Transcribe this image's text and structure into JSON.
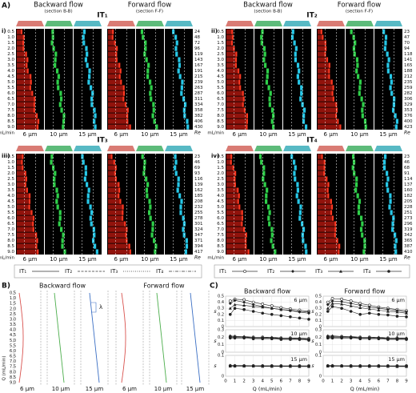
{
  "panel_a": {
    "label": "A)",
    "headers": [
      {
        "flow": "Backward flow",
        "section": "(section B-B)"
      },
      {
        "flow": "Forward flow",
        "section": "(section F-F)"
      }
    ],
    "q_labels": [
      "0.5",
      "1.0",
      "1.5",
      "2.0",
      "2.5",
      "3.0",
      "3.5",
      "4.0",
      "4.5",
      "5.0",
      "5.5",
      "6.0",
      "6.5",
      "7.0",
      "7.5",
      "8.0",
      "8.5",
      "9.0"
    ],
    "q_unit": "mL/min",
    "re_label": "Re",
    "sizes": [
      "6 µm",
      "10 µm",
      "15 µm"
    ],
    "subpanels": [
      {
        "label": "i)",
        "title": "IT₁",
        "re": [
          24,
          48,
          72,
          96,
          119,
          143,
          167,
          191,
          215,
          239,
          263,
          287,
          311,
          334,
          358,
          382,
          406,
          430
        ]
      },
      {
        "label": "ii)",
        "title": "IT₂",
        "re": [
          23,
          47,
          70,
          94,
          118,
          141,
          165,
          188,
          212,
          235,
          259,
          282,
          306,
          329,
          353,
          376,
          400,
          423
        ]
      },
      {
        "label": "iii)",
        "title": "IT₃",
        "re": [
          23,
          46,
          69,
          93,
          116,
          139,
          162,
          185,
          208,
          232,
          255,
          278,
          301,
          324,
          347,
          371,
          394,
          417
        ]
      },
      {
        "label": "iv)",
        "title": "IT₄",
        "re": [
          23,
          46,
          68,
          91,
          114,
          137,
          160,
          182,
          205,
          228,
          251,
          273,
          296,
          319,
          342,
          365,
          387,
          410
        ]
      }
    ],
    "legend_lines": [
      "IT₁",
      "IT₂",
      "IT₃",
      "IT₄"
    ],
    "legend_markers": [
      "IT₁",
      "IT₂",
      "IT₃",
      "IT₄"
    ]
  },
  "panel_b": {
    "label": "B)",
    "titles": [
      "Backward flow",
      "Forward flow"
    ],
    "axis_label": "Q (mL/min)",
    "lambda": "λ",
    "q_labels": [
      "0.5",
      "1.0",
      "1.5",
      "2.0",
      "2.5",
      "3.0",
      "3.5",
      "4.0",
      "4.5",
      "5.0",
      "5.5",
      "6.0",
      "6.5",
      "7.0",
      "7.5",
      "8.0",
      "8.5",
      "9.0"
    ],
    "sizes": [
      "6 µm",
      "10 µm",
      "15 µm"
    ]
  },
  "panel_c": {
    "label": "C)",
    "titles": [
      "Backward flow",
      "Forward flow"
    ],
    "x_label": "Q (mL/min)",
    "y_label": "s"
  },
  "chart_data": [
    {
      "type": "line",
      "label": "6 µm",
      "label_color": "#e8532b",
      "x": [
        0.5,
        1,
        2,
        3,
        4,
        5,
        6,
        7,
        8,
        9
      ],
      "xlim": [
        0,
        9
      ],
      "xticks": [
        0,
        1,
        2,
        3,
        4,
        5,
        6,
        7,
        8,
        9
      ],
      "ylim": [
        0,
        0.5
      ],
      "yticks": [
        0,
        0.1,
        0.2,
        0.3,
        0.4,
        0.5
      ],
      "grid": true,
      "series": [
        {
          "color": "#222",
          "marker": "circle",
          "values": [
            0.42,
            0.45,
            0.44,
            0.4,
            0.37,
            0.34,
            0.31,
            0.29,
            0.27,
            0.25
          ]
        },
        {
          "color": "#222",
          "marker": "diamond",
          "values": [
            0.38,
            0.43,
            0.4,
            0.36,
            0.33,
            0.3,
            0.28,
            0.26,
            0.24,
            0.22
          ]
        },
        {
          "color": "#222",
          "marker": "triangle",
          "values": [
            0.3,
            0.36,
            0.35,
            0.33,
            0.32,
            0.3,
            0.28,
            0.27,
            0.25,
            0.24
          ]
        },
        {
          "color": "#222",
          "marker": "dot",
          "values": [
            0.2,
            0.3,
            0.28,
            0.25,
            0.22,
            0.2,
            0.18,
            0.16,
            0.14,
            0.12
          ]
        }
      ]
    },
    {
      "type": "line",
      "label": "6 µm",
      "label_color": "#e8532b",
      "x": [
        0.5,
        1,
        2,
        3,
        4,
        5,
        6,
        7,
        8,
        9
      ],
      "xlim": [
        0,
        9
      ],
      "xticks": [
        0,
        1,
        2,
        3,
        4,
        5,
        6,
        7,
        8,
        9
      ],
      "ylim": [
        0,
        0.5
      ],
      "yticks": [
        0,
        0.1,
        0.2,
        0.3,
        0.4,
        0.5
      ],
      "grid": true,
      "series": [
        {
          "color": "#222",
          "marker": "circle",
          "values": [
            0.4,
            0.46,
            0.45,
            0.42,
            0.38,
            0.35,
            0.32,
            0.3,
            0.28,
            0.26
          ]
        },
        {
          "color": "#222",
          "marker": "diamond",
          "values": [
            0.36,
            0.42,
            0.41,
            0.38,
            0.35,
            0.32,
            0.3,
            0.28,
            0.26,
            0.24
          ]
        },
        {
          "color": "#222",
          "marker": "triangle",
          "values": [
            0.3,
            0.38,
            0.37,
            0.34,
            0.31,
            0.29,
            0.27,
            0.25,
            0.24,
            0.22
          ]
        },
        {
          "color": "#222",
          "marker": "dot",
          "values": [
            0.25,
            0.33,
            0.3,
            0.25,
            0.2,
            0.22,
            0.2,
            0.19,
            0.17,
            0.16
          ]
        }
      ]
    },
    {
      "type": "line",
      "label": "10 µm",
      "label_color": "#3a9a2a",
      "x": [
        0.5,
        1,
        2,
        3,
        4,
        5,
        6,
        7,
        8,
        9
      ],
      "xlim": [
        0,
        9
      ],
      "xticks": [
        0,
        1,
        2,
        3,
        4,
        5,
        6,
        7,
        8,
        9
      ],
      "ylim": [
        0,
        0.3
      ],
      "yticks": [
        0,
        0.1,
        0.2,
        0.3
      ],
      "grid": true,
      "series": [
        {
          "color": "#222",
          "marker": "circle",
          "values": [
            0.21,
            0.21,
            0.2,
            0.2,
            0.2,
            0.19,
            0.19,
            0.19,
            0.18,
            0.18
          ]
        },
        {
          "color": "#222",
          "marker": "diamond",
          "values": [
            0.2,
            0.2,
            0.2,
            0.19,
            0.19,
            0.19,
            0.18,
            0.18,
            0.18,
            0.17
          ]
        },
        {
          "color": "#222",
          "marker": "triangle",
          "values": [
            0.22,
            0.21,
            0.21,
            0.2,
            0.2,
            0.2,
            0.19,
            0.19,
            0.19,
            0.18
          ]
        },
        {
          "color": "#222",
          "marker": "dot",
          "values": [
            0.19,
            0.19,
            0.19,
            0.18,
            0.18,
            0.18,
            0.17,
            0.17,
            0.17,
            0.16
          ]
        }
      ]
    },
    {
      "type": "line",
      "label": "10 µm",
      "label_color": "#3a9a2a",
      "x": [
        0.5,
        1,
        2,
        3,
        4,
        5,
        6,
        7,
        8,
        9
      ],
      "xlim": [
        0,
        9
      ],
      "xticks": [
        0,
        1,
        2,
        3,
        4,
        5,
        6,
        7,
        8,
        9
      ],
      "ylim": [
        0,
        0.3
      ],
      "yticks": [
        0,
        0.1,
        0.2,
        0.3
      ],
      "grid": true,
      "series": [
        {
          "color": "#222",
          "marker": "circle",
          "values": [
            0.21,
            0.21,
            0.21,
            0.2,
            0.2,
            0.2,
            0.19,
            0.19,
            0.19,
            0.18
          ]
        },
        {
          "color": "#222",
          "marker": "diamond",
          "values": [
            0.2,
            0.2,
            0.2,
            0.2,
            0.19,
            0.19,
            0.19,
            0.18,
            0.18,
            0.18
          ]
        },
        {
          "color": "#222",
          "marker": "triangle",
          "values": [
            0.22,
            0.22,
            0.21,
            0.21,
            0.2,
            0.2,
            0.2,
            0.19,
            0.19,
            0.19
          ]
        },
        {
          "color": "#222",
          "marker": "dot",
          "values": [
            0.19,
            0.19,
            0.19,
            0.19,
            0.18,
            0.18,
            0.18,
            0.17,
            0.17,
            0.17
          ]
        }
      ]
    },
    {
      "type": "line",
      "label": "15 µm",
      "label_color": "#1f4fa0",
      "x": [
        0.5,
        1,
        2,
        3,
        4,
        5,
        6,
        7,
        8,
        9
      ],
      "xlim": [
        0,
        9
      ],
      "xticks": [
        0,
        1,
        2,
        3,
        4,
        5,
        6,
        7,
        8,
        9
      ],
      "ylim": [
        0,
        0.1
      ],
      "yticks": [
        0,
        0.1
      ],
      "grid": true,
      "series": [
        {
          "color": "#222",
          "marker": "circle",
          "values": [
            0.05,
            0.05,
            0.05,
            0.05,
            0.05,
            0.05,
            0.05,
            0.05,
            0.05,
            0.05
          ]
        },
        {
          "color": "#222",
          "marker": "diamond",
          "values": [
            0.052,
            0.051,
            0.051,
            0.05,
            0.05,
            0.05,
            0.049,
            0.049,
            0.049,
            0.048
          ]
        },
        {
          "color": "#222",
          "marker": "triangle",
          "values": [
            0.048,
            0.048,
            0.048,
            0.048,
            0.047,
            0.047,
            0.047,
            0.047,
            0.046,
            0.046
          ]
        },
        {
          "color": "#222",
          "marker": "dot",
          "values": [
            0.05,
            0.05,
            0.049,
            0.049,
            0.049,
            0.048,
            0.048,
            0.048,
            0.048,
            0.047
          ]
        }
      ]
    },
    {
      "type": "line",
      "label": "15 µm",
      "label_color": "#1f4fa0",
      "x": [
        0.5,
        1,
        2,
        3,
        4,
        5,
        6,
        7,
        8,
        9
      ],
      "xlim": [
        0,
        9
      ],
      "xticks": [
        0,
        1,
        2,
        3,
        4,
        5,
        6,
        7,
        8,
        9
      ],
      "ylim": [
        0,
        0.1
      ],
      "yticks": [
        0,
        0.1
      ],
      "grid": true,
      "series": [
        {
          "color": "#222",
          "marker": "circle",
          "values": [
            0.05,
            0.05,
            0.05,
            0.05,
            0.05,
            0.05,
            0.05,
            0.05,
            0.05,
            0.05
          ]
        },
        {
          "color": "#222",
          "marker": "diamond",
          "values": [
            0.051,
            0.051,
            0.05,
            0.05,
            0.05,
            0.05,
            0.05,
            0.049,
            0.049,
            0.049
          ]
        },
        {
          "color": "#222",
          "marker": "triangle",
          "values": [
            0.048,
            0.048,
            0.048,
            0.047,
            0.047,
            0.047,
            0.047,
            0.047,
            0.046,
            0.046
          ]
        },
        {
          "color": "#222",
          "marker": "dot",
          "values": [
            0.049,
            0.049,
            0.049,
            0.049,
            0.048,
            0.048,
            0.048,
            0.048,
            0.047,
            0.047
          ]
        }
      ]
    }
  ]
}
